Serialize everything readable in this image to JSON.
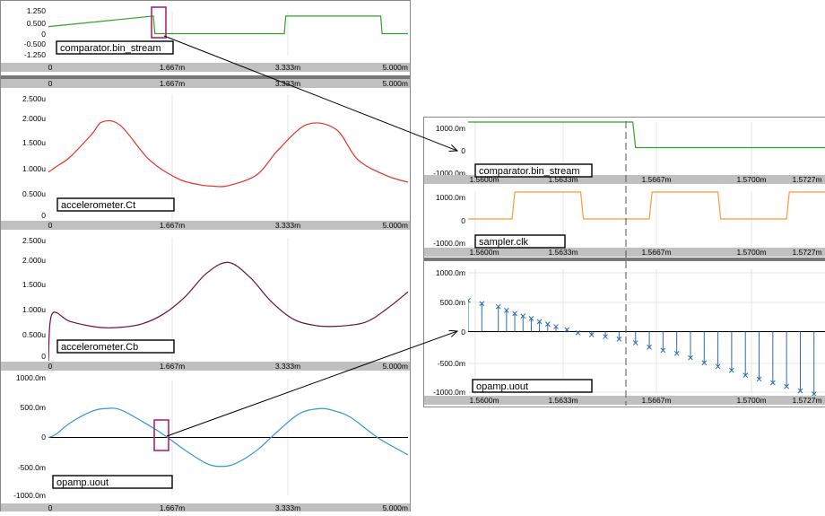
{
  "left_panel": {
    "plots": [
      {
        "id": "comparator",
        "name": "comparator.bin_stream",
        "y_ticks": [
          "1.250",
          "0.500",
          "0",
          "-0.500",
          "-1.250"
        ],
        "x_ticks": [
          "0",
          "1.667m",
          "3.333m",
          "5.000m"
        ],
        "color": "#33a02c"
      },
      {
        "id": "ct",
        "name": "accelerometer.Ct",
        "y_ticks": [
          "2.500u",
          "2.000u",
          "1.500u",
          "1.000u",
          "0.500u",
          "0"
        ],
        "x_ticks": [
          "0",
          "1.667m",
          "3.333m",
          "5.000m"
        ],
        "color": "#e8312b"
      },
      {
        "id": "cb",
        "name": "accelerometer.Cb",
        "y_ticks": [
          "2.500u",
          "2.000u",
          "1.500u",
          "1.000u",
          "0.500u",
          "0"
        ],
        "x_ticks": [
          "0",
          "1.667m",
          "3.333m",
          "5.000m"
        ],
        "color": "#6a1040"
      },
      {
        "id": "uout",
        "name": "opamp.uout",
        "y_ticks": [
          "1000.0m",
          "500.0m",
          "0",
          "-500.0m",
          "-1000.0m"
        ],
        "x_ticks": [
          "0",
          "1.667m",
          "3.333m",
          "5.000m"
        ],
        "color": "#3399cc"
      }
    ],
    "top_axis_ticks": [
      "0",
      "1.667m",
      "3.333m",
      "5.000m"
    ]
  },
  "right_panel": {
    "plots": [
      {
        "id": "zcomp",
        "name": "comparator.bin_stream",
        "y_ticks": [
          "1000.0m",
          "0",
          "-1000.0m"
        ],
        "x_ticks": [
          "1.5600m",
          "1.5633m",
          "1.5667m",
          "1.5700m",
          "1.5727m"
        ],
        "color": "#33a02c"
      },
      {
        "id": "clk",
        "name": "sampler.clk",
        "y_ticks": [
          "1000.0m",
          "0",
          "-1000.0m"
        ],
        "x_ticks": [
          "1.5600m",
          "1.5633m",
          "1.5667m",
          "1.5700m",
          "1.5727m"
        ],
        "color": "#ff9933"
      },
      {
        "id": "zuout",
        "name": "opamp.uout",
        "y_ticks": [
          "1000.0m",
          "500.0m",
          "0",
          "-500.0m",
          "-1000.0m"
        ],
        "x_ticks": [
          "1.5600m",
          "1.5633m",
          "1.5667m",
          "1.5700m",
          "1.5727m"
        ],
        "color": "#2a6bb0"
      }
    ]
  },
  "chart_data": [
    {
      "type": "line",
      "name": "comparator.bin_stream",
      "x": [
        0,
        0.00146,
        0.00148,
        0.00328,
        0.0033,
        0.00462,
        0.00464,
        0.005
      ],
      "y": [
        0.4,
        1,
        0,
        0,
        1,
        1,
        0,
        0
      ],
      "xlim": [
        0,
        0.005
      ],
      "ylim": [
        -1.25,
        1.25
      ]
    },
    {
      "type": "line",
      "name": "accelerometer.Ct",
      "x": [
        0,
        0.0001,
        0.0003,
        0.0006,
        0.00075,
        0.001,
        0.0014,
        0.0018,
        0.0021,
        0.0023,
        0.0025,
        0.0029,
        0.0032,
        0.0036,
        0.004,
        0.0043,
        0.0047,
        0.005
      ],
      "y": [
        9.5e-07,
        1.05e-06,
        1.25e-06,
        1.7e-06,
        1.95e-06,
        1.88e-06,
        1.2e-06,
        8.2e-07,
        7e-07,
        6.7e-07,
        6.8e-07,
        9e-07,
        1.4e-06,
        1.9e-06,
        1.8e-06,
        1.2e-06,
        8.8e-07,
        7.5e-07
      ],
      "xlim": [
        0,
        0.005
      ],
      "ylim": [
        0,
        2.5e-06
      ]
    },
    {
      "type": "line",
      "name": "accelerometer.Cb",
      "x": [
        0,
        5e-05,
        0.0003,
        0.0007,
        0.001,
        0.0013,
        0.0016,
        0.0019,
        0.0022,
        0.0025,
        0.0028,
        0.0031,
        0.0034,
        0.0037,
        0.004,
        0.0044,
        0.0047,
        0.005
      ],
      "y": [
        0,
        9.5e-07,
        8e-07,
        6.8e-07,
        6.8e-07,
        7.5e-07,
        9.5e-07,
        1.3e-06,
        1.78e-06,
        2e-06,
        1.7e-06,
        1.2e-06,
        8.5e-07,
        7.2e-07,
        7e-07,
        7.8e-07,
        1.05e-06,
        1.4e-06
      ],
      "xlim": [
        0,
        0.005
      ],
      "ylim": [
        0,
        2.5e-06
      ]
    },
    {
      "type": "line",
      "name": "opamp.uout",
      "x": [
        0,
        0.0001,
        0.0003,
        0.0006,
        0.0008,
        0.001,
        0.0013,
        0.0016,
        0.0019,
        0.0022,
        0.0024,
        0.0026,
        0.0029,
        0.0032,
        0.0035,
        0.0038,
        0.004,
        0.0042,
        0.0046,
        0.005
      ],
      "y": [
        0,
        0.05,
        0.25,
        0.45,
        0.5,
        0.48,
        0.28,
        0.05,
        -0.22,
        -0.45,
        -0.5,
        -0.45,
        -0.22,
        0.12,
        0.42,
        0.5,
        0.45,
        0.35,
        -0.02,
        -0.3
      ],
      "xlim": [
        0,
        0.005
      ],
      "ylim": [
        -1,
        1
      ]
    },
    {
      "type": "line",
      "name": "comparator.bin_stream",
      "x": [
        0.00156,
        0.001566,
        0.0015661,
        0.001573
      ],
      "y": [
        1,
        1,
        0,
        0
      ],
      "xlim": [
        0.00156,
        0.001573
      ],
      "ylim": [
        -1,
        1
      ]
    },
    {
      "type": "line",
      "name": "sampler.clk",
      "x": [
        0.00156,
        0.0015616,
        0.0015617,
        0.0015641,
        0.0015642,
        0.0015666,
        0.0015667,
        0.0015691,
        0.0015692,
        0.0015716,
        0.0015717,
        0.0015741
      ],
      "y": [
        0,
        0,
        1,
        1,
        0,
        0,
        1,
        1,
        0,
        0,
        1,
        1
      ],
      "xlim": [
        0.00156,
        0.001573
      ],
      "ylim": [
        -1,
        1
      ]
    },
    {
      "type": "scatter",
      "name": "opamp.uout",
      "x": [
        0.00156,
        0.0015605,
        0.0015611,
        0.0015614,
        0.0015617,
        0.001562,
        0.0015623,
        0.0015626,
        0.0015629,
        0.0015632,
        0.0015636,
        0.001564,
        0.0015645,
        0.001565,
        0.0015655,
        0.0015661,
        0.0015666,
        0.0015671,
        0.0015676,
        0.0015681,
        0.0015686,
        0.0015691,
        0.0015696,
        0.0015701,
        0.0015706,
        0.0015711,
        0.0015716,
        0.0015721,
        0.0015726
      ],
      "y": [
        0.5,
        0.45,
        0.4,
        0.34,
        0.29,
        0.25,
        0.21,
        0.16,
        0.12,
        0.08,
        0.03,
        -0.02,
        -0.05,
        -0.08,
        -0.12,
        -0.18,
        -0.25,
        -0.3,
        -0.35,
        -0.42,
        -0.5,
        -0.56,
        -0.62,
        -0.7,
        -0.76,
        -0.82,
        -0.88,
        -0.95,
        -1
      ],
      "xlim": [
        0.00156,
        0.001573
      ],
      "ylim": [
        -1,
        1
      ]
    }
  ]
}
